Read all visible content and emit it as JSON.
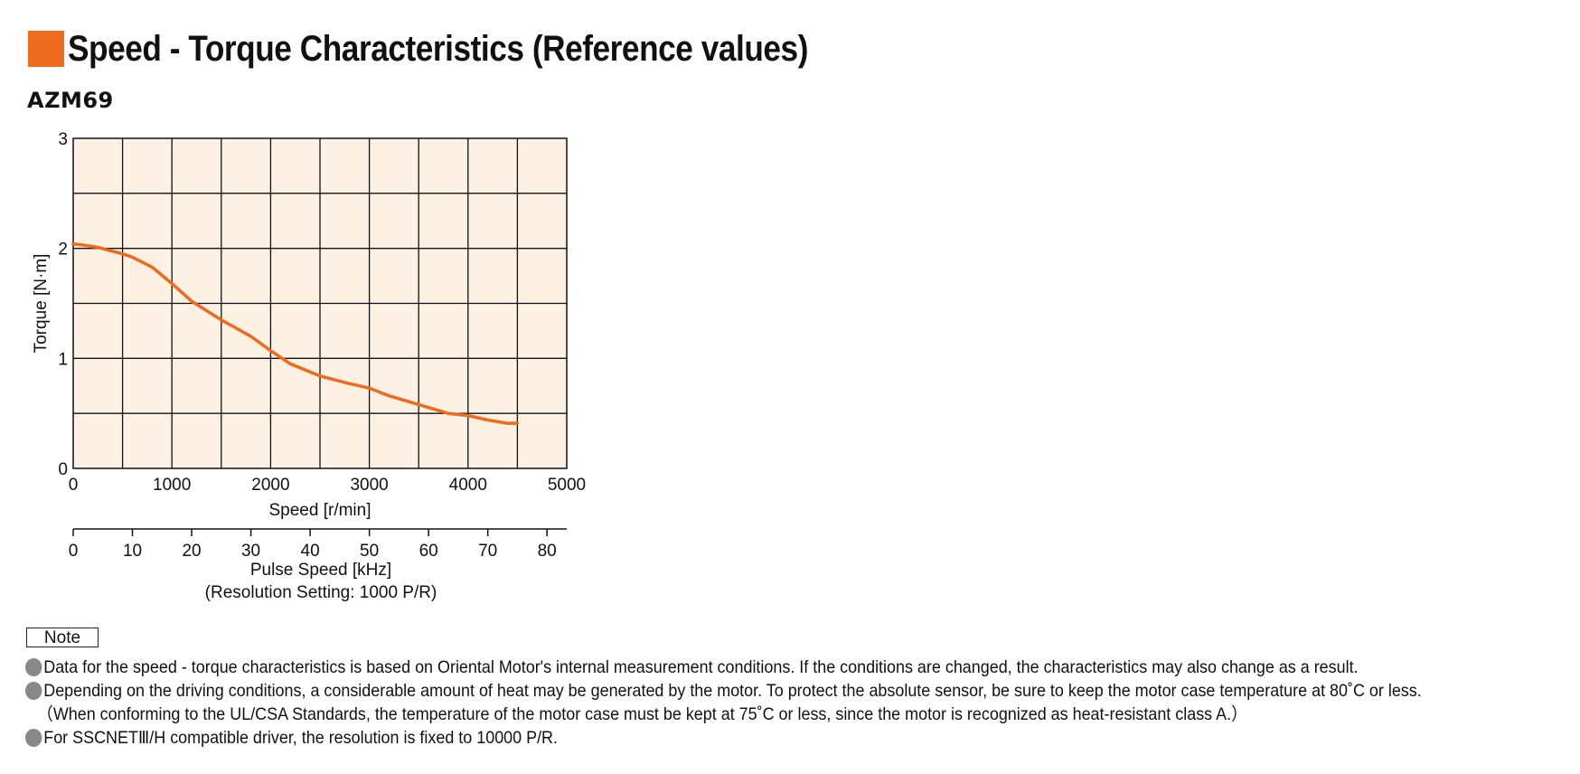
{
  "header": {
    "title": "Speed - Torque Characteristics (Reference values)",
    "accent_color": "#ee6a1c"
  },
  "model_name": "AZM69",
  "chart_data": {
    "type": "line",
    "title": "",
    "xlabel": "Speed [r/min]",
    "ylabel": "Torque [N·m]",
    "xlim": [
      0,
      5000
    ],
    "ylim": [
      0,
      3
    ],
    "x_ticks": [
      "0",
      "1000",
      "2000",
      "3000",
      "4000",
      "5000"
    ],
    "y_ticks": [
      "0",
      "1",
      "2",
      "3"
    ],
    "grid": true,
    "grid_x_step": 500,
    "grid_y_step": 0.5,
    "plot_bg": "#fdf1e4",
    "series": [
      {
        "color": "#ee6a1c",
        "x": [
          0,
          100,
          250,
          500,
          600,
          800,
          1000,
          1200,
          1500,
          1800,
          2000,
          2200,
          2500,
          2800,
          3000,
          3200,
          3500,
          3800,
          4000,
          4200,
          4400,
          4500
        ],
        "y": [
          2.04,
          2.03,
          2.01,
          1.95,
          1.92,
          1.83,
          1.68,
          1.52,
          1.35,
          1.2,
          1.07,
          0.95,
          0.84,
          0.77,
          0.73,
          0.66,
          0.58,
          0.5,
          0.48,
          0.44,
          0.41,
          0.41
        ]
      }
    ],
    "secondary_axis": {
      "label_line1": "Pulse Speed [kHz]",
      "label_line2": "(Resolution Setting: 1000 P/R)",
      "ticks": [
        "0",
        "10",
        "20",
        "30",
        "40",
        "50",
        "60",
        "70",
        "80"
      ],
      "range": [
        0,
        83.33
      ]
    }
  },
  "note": {
    "label": "Note",
    "bullet_color": "#888888",
    "lines": [
      "Data for the speed - torque characteristics is based on Oriental Motor's internal measurement conditions. If the conditions are changed, the characteristics may also change as a result.",
      "Depending on the driving conditions, a considerable amount of heat may be generated by the motor.  To protect the absolute sensor, be sure to keep the motor case temperature at 80˚C or less.",
      "（When conforming to the UL/CSA Standards, the temperature of the motor case must be kept at 75˚C or less, since the motor is recognized as heat-resistant class A.）",
      "For SSCNETⅢ/H compatible driver, the resolution is fixed to 10000 P/R."
    ]
  }
}
